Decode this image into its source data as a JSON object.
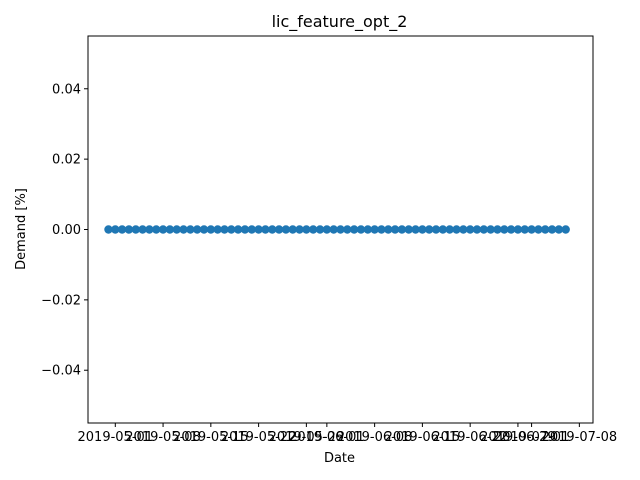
{
  "chart_data": {
    "type": "scatter",
    "title": "lic_feature_opt_2",
    "xlabel": "Date",
    "ylabel": "Demand [%]",
    "ylim": [
      -0.055,
      0.055
    ],
    "xlim": [
      "2019-04-27",
      "2019-07-10"
    ],
    "y_ticks": [
      {
        "value": 0.04,
        "label": "0.04"
      },
      {
        "value": 0.02,
        "label": "0.02"
      },
      {
        "value": 0.0,
        "label": "0.00"
      },
      {
        "value": -0.02,
        "label": "−0.02"
      },
      {
        "value": -0.04,
        "label": "−0.04"
      }
    ],
    "x_ticks": [
      {
        "value": "2019-05-01",
        "label": "2019-05-01"
      },
      {
        "value": "2019-05-08",
        "label": "2019-05-08"
      },
      {
        "value": "2019-05-15",
        "label": "2019-05-15"
      },
      {
        "value": "2019-05-22",
        "label": "2019-05-22"
      },
      {
        "value": "2019-05-29",
        "label": "2019-05-29"
      },
      {
        "value": "2019-06-01",
        "label": "2019-06-01"
      },
      {
        "value": "2019-06-08",
        "label": "2019-06-08"
      },
      {
        "value": "2019-06-15",
        "label": "2019-06-15"
      },
      {
        "value": "2019-06-22",
        "label": "2019-06-22"
      },
      {
        "value": "2019-06-29",
        "label": "2019-06-29"
      },
      {
        "value": "2019-07-01",
        "label": "2019-07-01"
      },
      {
        "value": "2019-07-08",
        "label": "2019-07-08"
      }
    ],
    "series": [
      {
        "color": "#1f77b4",
        "x_start": "2019-04-30",
        "x_end": "2019-07-06",
        "x_step_days": 1,
        "value": 0.0
      }
    ]
  }
}
